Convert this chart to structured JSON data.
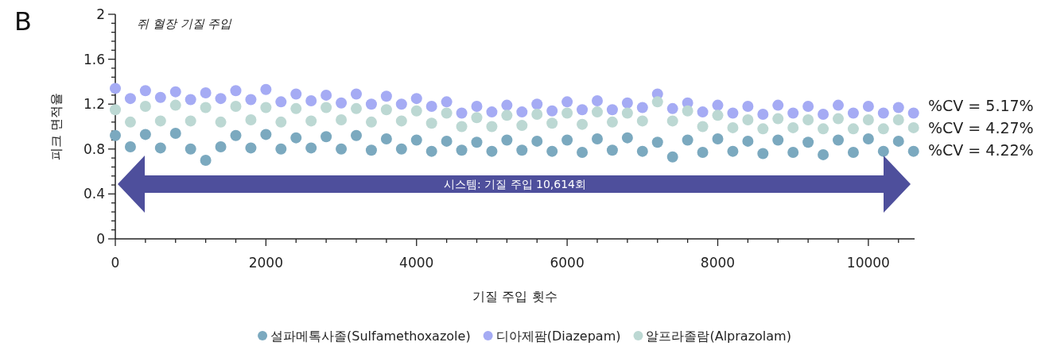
{
  "chart_data": {
    "type": "scatter",
    "title": "쥐 혈장 기질 주입",
    "xlabel": "기질 주입 횟수",
    "ylabel": "피크 면적율",
    "annotations": [
      "B",
      "%CV = 5.17%",
      "%CV = 4.27%",
      "%CV = 4.22%",
      "시스템: 기질 주입 10,614회"
    ],
    "x": [
      0,
      200,
      400,
      600,
      800,
      1000,
      1200,
      1400,
      1600,
      1800,
      2000,
      2200,
      2400,
      2600,
      2800,
      3000,
      3200,
      3400,
      3600,
      3800,
      4000,
      4200,
      4400,
      4600,
      4800,
      5000,
      5200,
      5400,
      5600,
      5800,
      6000,
      6200,
      6400,
      6600,
      6800,
      7000,
      7200,
      7400,
      7600,
      7800,
      8000,
      8200,
      8400,
      8600,
      8800,
      9000,
      9200,
      9400,
      9600,
      9800,
      10000,
      10200,
      10400,
      10600
    ],
    "series": [
      {
        "name": "설파메톡사졸(Sulfamethoxazole)",
        "color": "#7ba9bf",
        "values": [
          0.92,
          0.82,
          0.93,
          0.81,
          0.94,
          0.8,
          0.7,
          0.82,
          0.92,
          0.81,
          0.93,
          0.8,
          0.9,
          0.81,
          0.91,
          0.8,
          0.92,
          0.79,
          0.89,
          0.8,
          0.88,
          0.78,
          0.87,
          0.79,
          0.86,
          0.78,
          0.88,
          0.79,
          0.87,
          0.78,
          0.88,
          0.77,
          0.89,
          0.79,
          0.9,
          0.78,
          0.86,
          0.73,
          0.88,
          0.77,
          0.89,
          0.78,
          0.87,
          0.76,
          0.88,
          0.77,
          0.86,
          0.75,
          0.88,
          0.77,
          0.89,
          0.78,
          0.87,
          0.78
        ]
      },
      {
        "name": "디아제팜(Diazepam)",
        "color": "#a5abf4",
        "values": [
          1.34,
          1.25,
          1.32,
          1.26,
          1.31,
          1.24,
          1.3,
          1.25,
          1.32,
          1.24,
          1.33,
          1.22,
          1.29,
          1.23,
          1.28,
          1.21,
          1.29,
          1.2,
          1.27,
          1.2,
          1.25,
          1.18,
          1.22,
          1.12,
          1.18,
          1.13,
          1.19,
          1.13,
          1.2,
          1.14,
          1.22,
          1.15,
          1.23,
          1.15,
          1.21,
          1.17,
          1.29,
          1.16,
          1.21,
          1.13,
          1.19,
          1.12,
          1.18,
          1.11,
          1.19,
          1.12,
          1.18,
          1.11,
          1.19,
          1.12,
          1.18,
          1.12,
          1.17,
          1.12
        ]
      },
      {
        "name": "알프라졸람(Alprazolam)",
        "color": "#bcd8d3",
        "values": [
          1.15,
          1.04,
          1.18,
          1.05,
          1.19,
          1.05,
          1.17,
          1.04,
          1.18,
          1.06,
          1.17,
          1.04,
          1.16,
          1.05,
          1.17,
          1.06,
          1.16,
          1.04,
          1.15,
          1.05,
          1.14,
          1.03,
          1.12,
          1.0,
          1.08,
          1.0,
          1.1,
          1.01,
          1.11,
          1.03,
          1.12,
          1.02,
          1.13,
          1.04,
          1.12,
          1.05,
          1.22,
          1.05,
          1.14,
          1.0,
          1.1,
          0.99,
          1.06,
          0.98,
          1.07,
          0.99,
          1.06,
          0.98,
          1.07,
          0.98,
          1.06,
          0.98,
          1.06,
          0.99
        ]
      }
    ],
    "xlim": [
      0,
      10614
    ],
    "xticks": [
      0,
      {
        "value": 400,
        "label": null
      },
      {
        "value": 800,
        "label": null
      },
      {
        "value": 1200,
        "label": null
      },
      {
        "value": 1600,
        "label": null
      },
      2000,
      {
        "value": 2400,
        "label": null
      },
      {
        "value": 2800,
        "label": null
      },
      {
        "value": 3200,
        "label": null
      },
      {
        "value": 3600,
        "label": null
      },
      4000,
      {
        "value": 4400,
        "label": null
      },
      {
        "value": 4800,
        "label": null
      },
      {
        "value": 5200,
        "label": null
      },
      {
        "value": 5600,
        "label": null
      },
      6000,
      {
        "value": 6400,
        "label": null
      },
      {
        "value": 6800,
        "label": null
      },
      {
        "value": 7200,
        "label": null
      },
      {
        "value": 7600,
        "label": null
      },
      8000,
      {
        "value": 8400,
        "label": null
      },
      {
        "value": 8800,
        "label": null
      },
      {
        "value": 9200,
        "label": null
      },
      {
        "value": 9600,
        "label": null
      },
      10000,
      {
        "value": 10400,
        "label": null
      }
    ],
    "ylim": [
      0,
      2
    ],
    "yticks": [
      0,
      {
        "value": 0.08,
        "label": null
      },
      {
        "value": 0.16,
        "label": null
      },
      {
        "value": 0.24,
        "label": null
      },
      {
        "value": 0.32,
        "label": null
      },
      0.4,
      {
        "value": 0.48,
        "label": null
      },
      {
        "value": 0.56,
        "label": null
      },
      {
        "value": 0.64,
        "label": null
      },
      {
        "value": 0.72,
        "label": null
      },
      0.8,
      {
        "value": 0.88,
        "label": null
      },
      {
        "value": 0.96,
        "label": null
      },
      {
        "value": 1.04,
        "label": null
      },
      {
        "value": 1.12,
        "label": null
      },
      1.2,
      {
        "value": 1.28,
        "label": null
      },
      {
        "value": 1.36,
        "label": null
      },
      {
        "value": 1.44,
        "label": null
      },
      {
        "value": 1.52,
        "label": null
      },
      1.6,
      {
        "value": 1.68,
        "label": null
      },
      {
        "value": 1.76,
        "label": null
      },
      {
        "value": 1.84,
        "label": null
      },
      {
        "value": 1.92,
        "label": null
      },
      2
    ],
    "marker": "circle",
    "legend": "bottom"
  }
}
